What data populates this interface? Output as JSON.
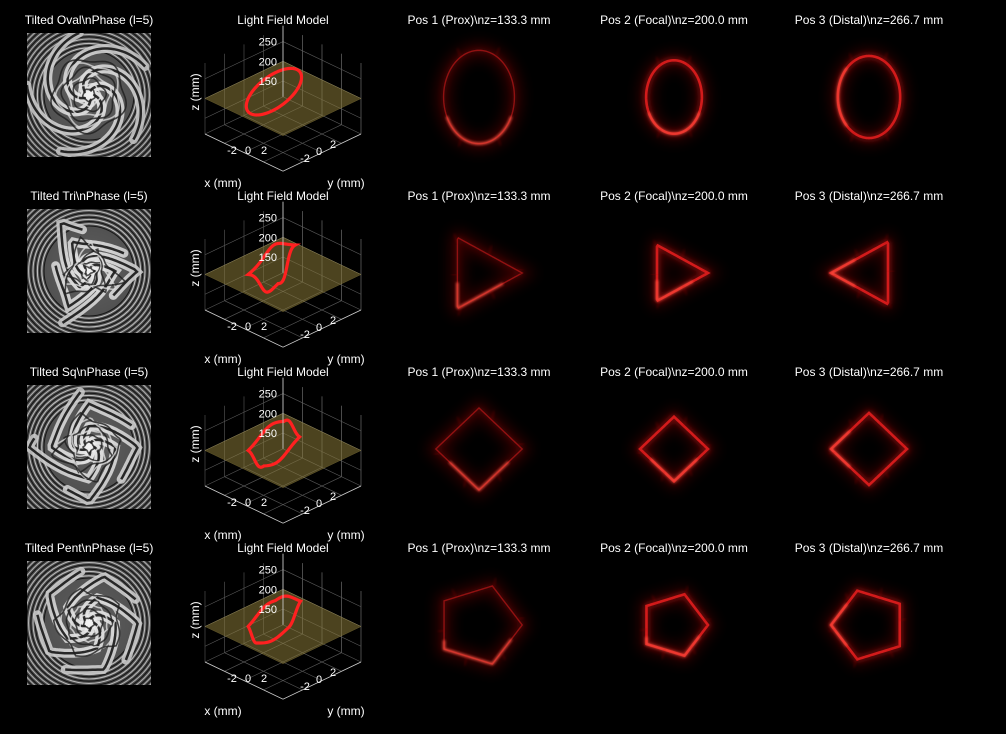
{
  "figure": {
    "background": "#000000",
    "ring_color": "#ff2020",
    "plane_color": "#8a7a3a"
  },
  "chart_data": [
    {
      "type": "image-grid",
      "row": 0,
      "phase_title": "Tilted Oval\\nPhase (l=5)",
      "model_title": "Light Field Model",
      "shape_sides": 0,
      "model_zticks": [
        "250",
        "200",
        "150"
      ],
      "model_xticks": [
        "-2",
        "0",
        "2"
      ],
      "model_yticks": [
        "-2",
        "0",
        "2"
      ],
      "model_zlabel": "z (mm)",
      "model_xlabel": "x (mm)",
      "model_ylabel": "y (mm)",
      "model_zlim": [
        110,
        290
      ],
      "positions": [
        {
          "title": "Pos 1 (Prox)\\nz=133.3 mm",
          "z_mm": 133.3
        },
        {
          "title": "Pos 2 (Focal)\\nz=200.0 mm",
          "z_mm": 200.0
        },
        {
          "title": "Pos 3 (Distal)\\nz=266.7 mm",
          "z_mm": 266.7
        }
      ]
    },
    {
      "type": "image-grid",
      "row": 1,
      "phase_title": "Tilted Tri\\nPhase (l=5)",
      "model_title": "Light Field Model",
      "shape_sides": 3,
      "model_zticks": [
        "250",
        "200",
        "150"
      ],
      "model_xticks": [
        "-2",
        "0",
        "2"
      ],
      "model_yticks": [
        "-2",
        "0",
        "2"
      ],
      "model_zlabel": "z (mm)",
      "model_xlabel": "x (mm)",
      "model_ylabel": "y (mm)",
      "model_zlim": [
        110,
        290
      ],
      "positions": [
        {
          "title": "Pos 1 (Prox)\\nz=133.3 mm",
          "z_mm": 133.3
        },
        {
          "title": "Pos 2 (Focal)\\nz=200.0 mm",
          "z_mm": 200.0
        },
        {
          "title": "Pos 3 (Distal)\\nz=266.7 mm",
          "z_mm": 266.7
        }
      ]
    },
    {
      "type": "image-grid",
      "row": 2,
      "phase_title": "Tilted Sq\\nPhase (l=5)",
      "model_title": "Light Field Model",
      "shape_sides": 4,
      "model_zticks": [
        "250",
        "200",
        "150"
      ],
      "model_xticks": [
        "-2",
        "0",
        "2"
      ],
      "model_yticks": [
        "-2",
        "0",
        "2"
      ],
      "model_zlabel": "z (mm)",
      "model_xlabel": "x (mm)",
      "model_ylabel": "y (mm)",
      "model_zlim": [
        110,
        290
      ],
      "positions": [
        {
          "title": "Pos 1 (Prox)\\nz=133.3 mm",
          "z_mm": 133.3
        },
        {
          "title": "Pos 2 (Focal)\\nz=200.0 mm",
          "z_mm": 200.0
        },
        {
          "title": "Pos 3 (Distal)\\nz=266.7 mm",
          "z_mm": 266.7
        }
      ]
    },
    {
      "type": "image-grid",
      "row": 3,
      "phase_title": "Tilted Pent\\nPhase (l=5)",
      "model_title": "Light Field Model",
      "shape_sides": 5,
      "model_zticks": [
        "250",
        "200",
        "150"
      ],
      "model_xticks": [
        "-2",
        "0",
        "2"
      ],
      "model_yticks": [
        "-2",
        "0",
        "2"
      ],
      "model_zlabel": "z (mm)",
      "model_xlabel": "x (mm)",
      "model_ylabel": "y (mm)",
      "model_zlim": [
        110,
        290
      ],
      "positions": [
        {
          "title": "Pos 1 (Prox)\\nz=133.3 mm",
          "z_mm": 133.3
        },
        {
          "title": "Pos 2 (Focal)\\nz=200.0 mm",
          "z_mm": 200.0
        },
        {
          "title": "Pos 3 (Distal)\\nz=266.7 mm",
          "z_mm": 266.7
        }
      ]
    }
  ]
}
